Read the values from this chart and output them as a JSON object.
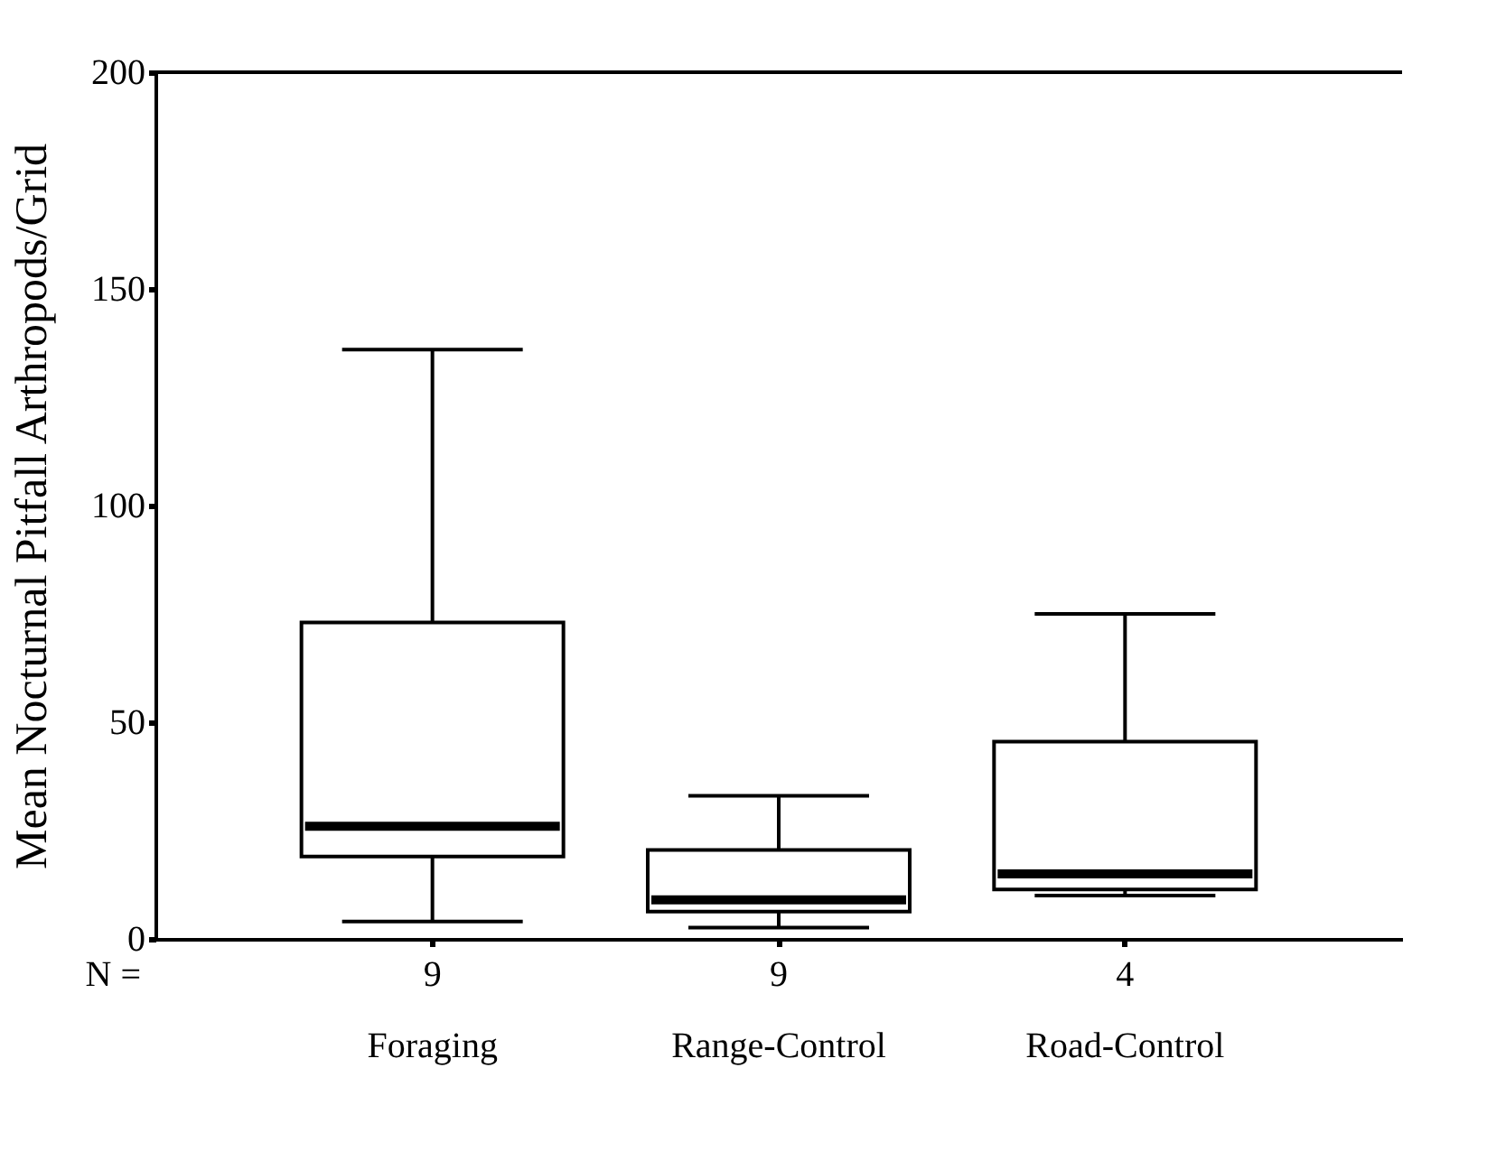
{
  "chart_data": {
    "type": "box",
    "ylabel": "Mean Nocturnal Pitfall Arthropods/Grid",
    "categories": [
      "Foraging",
      "Range-Control",
      "Road-Control"
    ],
    "boxes": [
      {
        "low": 4,
        "q1": 19,
        "median": 26,
        "q3": 73,
        "high": 136
      },
      {
        "low": 2.6,
        "q1": 6.3,
        "median": 9,
        "q3": 20.5,
        "high": 33
      },
      {
        "low": 10,
        "q1": 11.4,
        "median": 15,
        "q3": 45.5,
        "high": 75
      }
    ],
    "ylim": [
      0,
      200
    ],
    "yticks": [
      0,
      50,
      100,
      150,
      200
    ],
    "grid": false,
    "annotations": [
      "N =",
      "9",
      "9",
      "4"
    ]
  }
}
